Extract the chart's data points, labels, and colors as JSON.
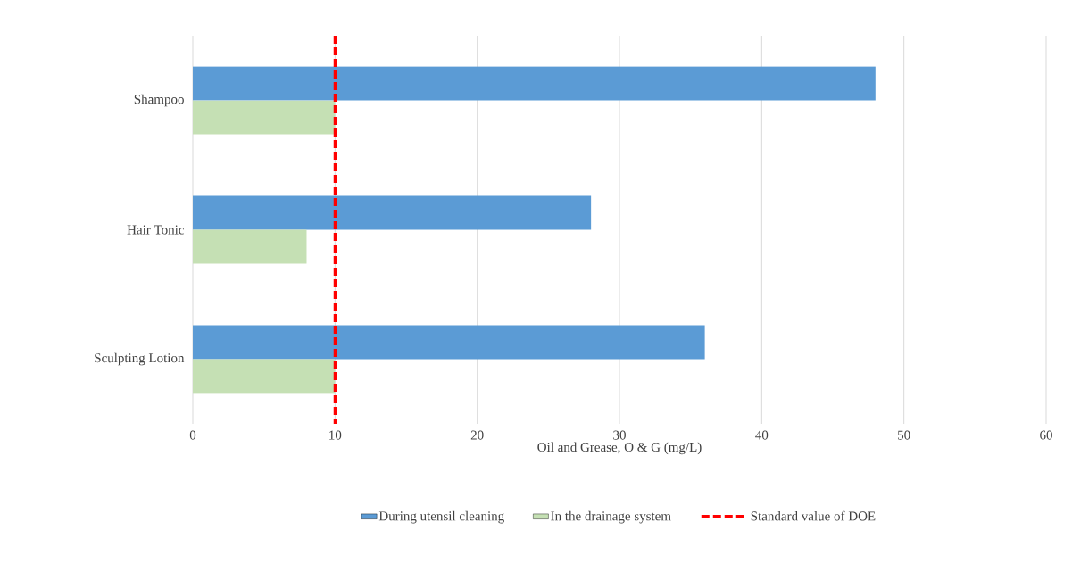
{
  "chart_data": {
    "type": "bar",
    "orientation": "horizontal",
    "categories": [
      "Shampoo",
      "Hair Tonic",
      "Sculpting Lotion"
    ],
    "series": [
      {
        "name": "During utensil cleaning",
        "color": "#5b9bd5",
        "values": [
          48,
          28,
          36
        ]
      },
      {
        "name": "In the drainage system",
        "color": "#c5e0b4",
        "values": [
          10,
          8,
          10
        ]
      }
    ],
    "xlabel": "Oil and Grease, O & G (mg/L)",
    "xlim": [
      0,
      60
    ],
    "xticks": [
      0,
      10,
      20,
      30,
      40,
      50,
      60
    ],
    "grid": "x",
    "legend": "bottom",
    "ref_lines": [
      {
        "axis": "x",
        "value": 10,
        "label": "Standard value of DOE",
        "color": "#ff0000",
        "line_style": "dashed"
      }
    ]
  }
}
